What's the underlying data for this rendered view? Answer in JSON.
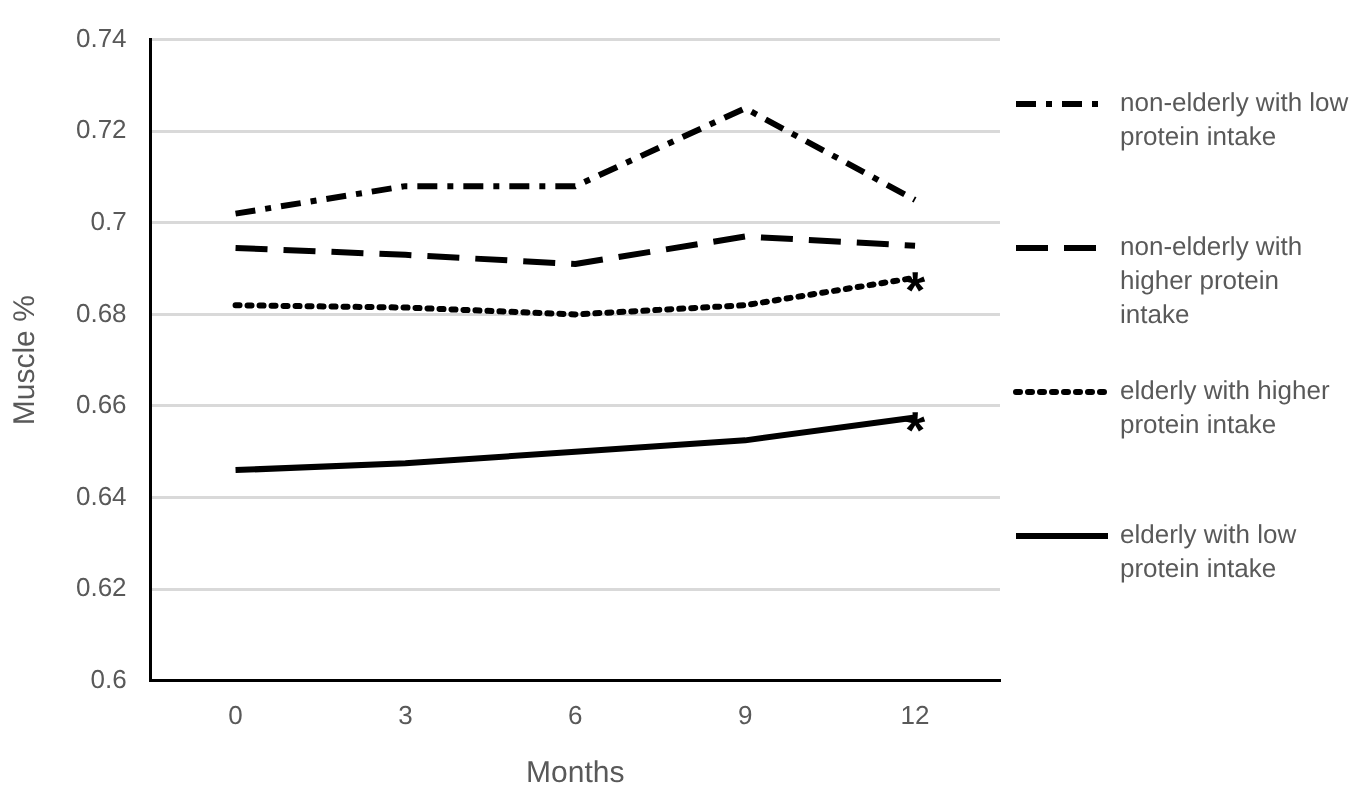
{
  "chart_data": {
    "type": "line",
    "xlabel": "Months",
    "ylabel": "Muscle %",
    "categories": [
      "0",
      "3",
      "6",
      "9",
      "12"
    ],
    "series": [
      {
        "name": "non-elderly with low protein intake",
        "color": "#000000",
        "line_style": "dashdot",
        "values": [
          0.702,
          0.708,
          0.708,
          0.725,
          0.705
        ]
      },
      {
        "name": "non-elderly with higher protein intake",
        "color": "#000000",
        "line_style": "dashed",
        "values": [
          0.6945,
          0.693,
          0.691,
          0.697,
          0.695
        ]
      },
      {
        "name": "elderly with higher protein intake",
        "color": "#000000",
        "line_style": "dotted",
        "values": [
          0.682,
          0.6815,
          0.68,
          0.682,
          0.688
        ]
      },
      {
        "name": "elderly with low protein intake",
        "color": "#000000",
        "line_style": "solid",
        "values": [
          0.646,
          0.6475,
          0.65,
          0.6525,
          0.6575
        ]
      }
    ],
    "annotations": [
      {
        "text": "*",
        "x": "12",
        "y": 0.688
      },
      {
        "text": "*",
        "x": "12",
        "y": 0.6575
      }
    ],
    "ylim": [
      0.6,
      0.74
    ],
    "yticks": [
      0.6,
      0.62,
      0.64,
      0.66,
      0.68,
      0.7,
      0.72,
      0.74
    ],
    "grid": "y",
    "legend": "right",
    "marker": "none"
  }
}
